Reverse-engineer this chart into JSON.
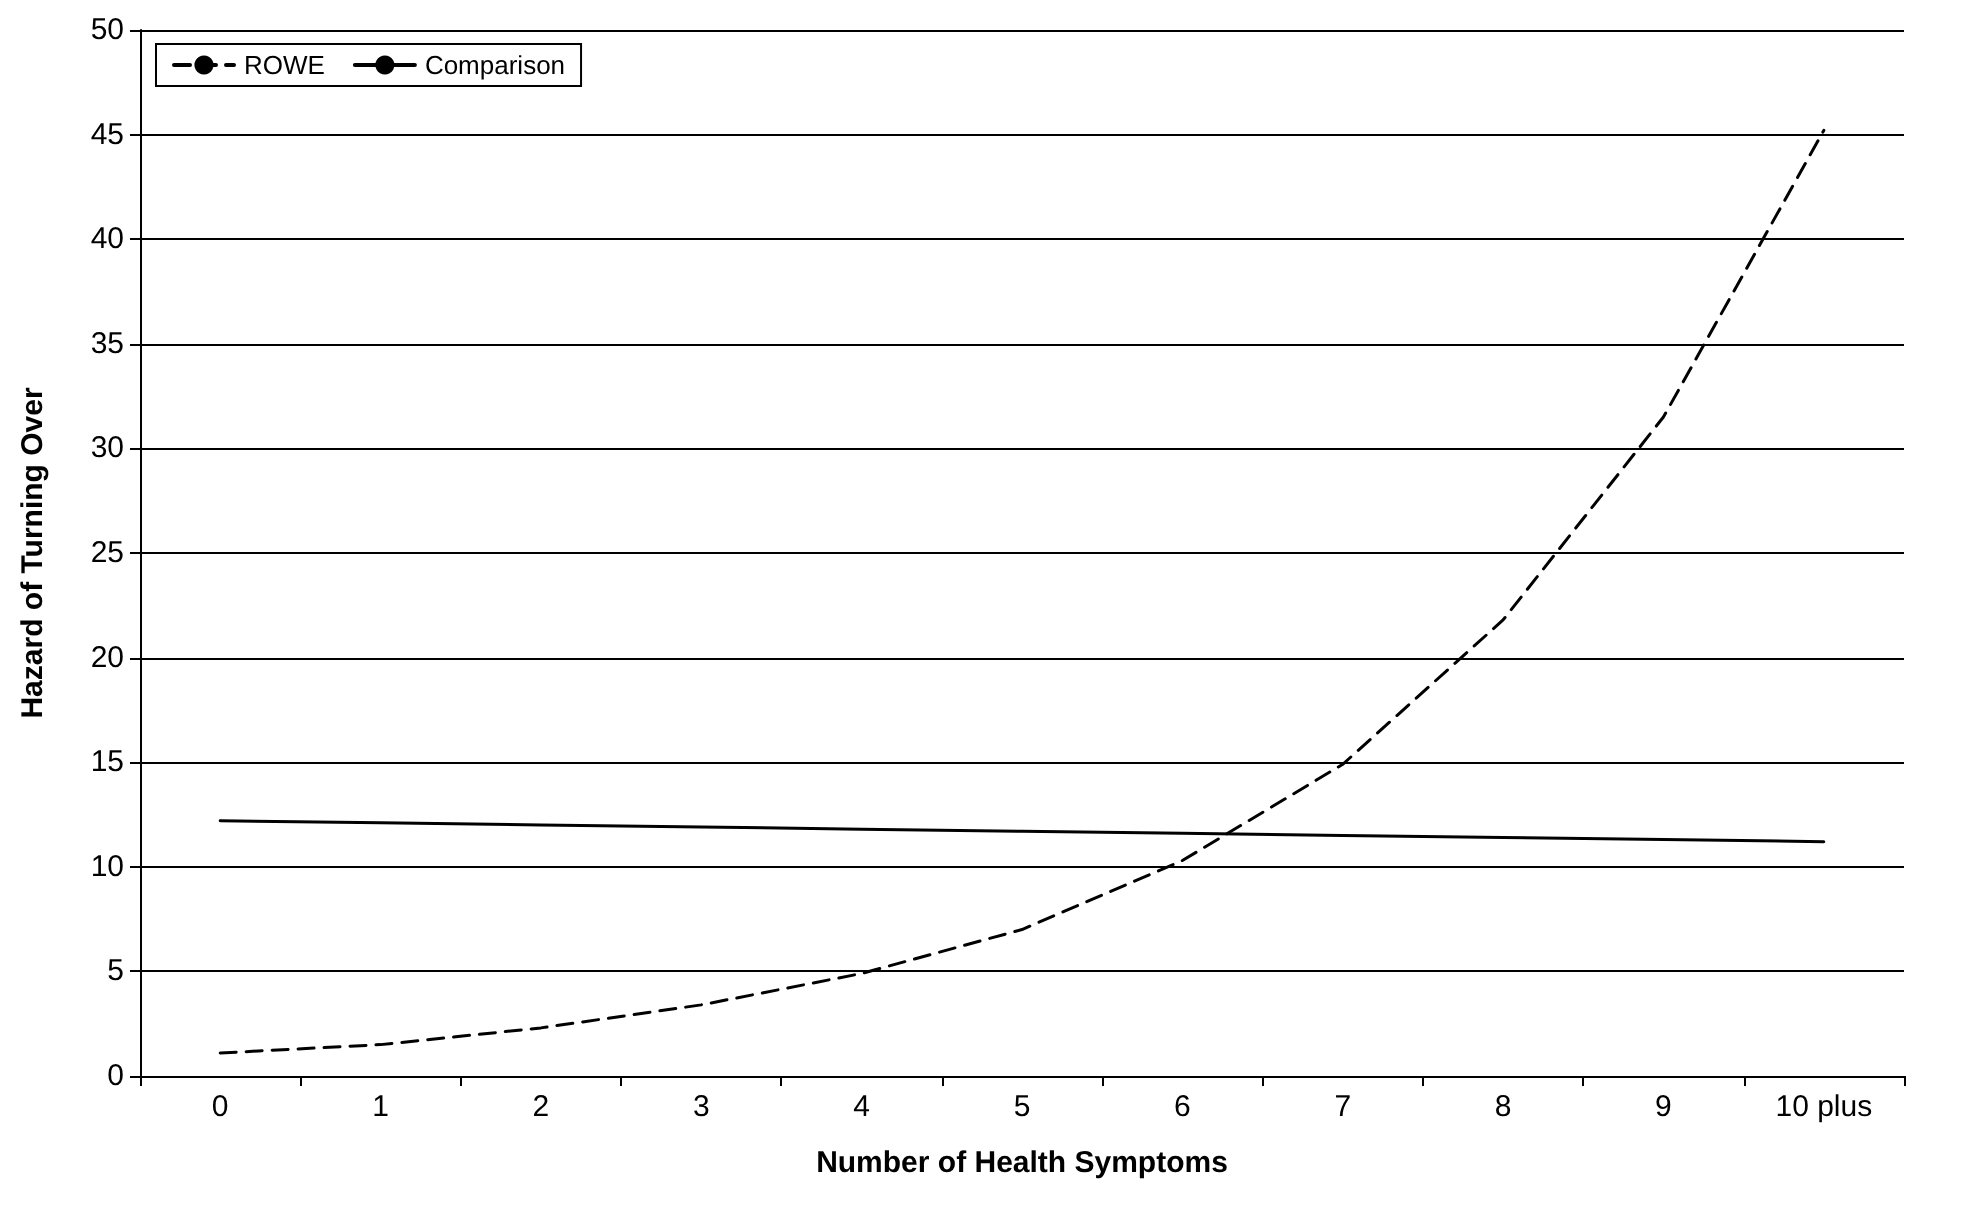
{
  "chart_data": {
    "type": "line",
    "xlabel": "Number of Health Symptoms",
    "ylabel": "Hazard of Turning Over",
    "categories": [
      "0",
      "1",
      "2",
      "3",
      "4",
      "5",
      "6",
      "7",
      "8",
      "9",
      "10 plus"
    ],
    "series": [
      {
        "name": "ROWE",
        "color": "#000000",
        "line_style": "dashed",
        "values": [
          1.1,
          1.5,
          2.3,
          3.4,
          4.9,
          7.0,
          10.3,
          14.9,
          21.8,
          31.5,
          45.2
        ]
      },
      {
        "name": "Comparison",
        "color": "#000000",
        "line_style": "solid",
        "values": [
          12.2,
          12.1,
          12.0,
          11.9,
          11.8,
          11.7,
          11.6,
          11.5,
          11.4,
          11.3,
          11.2
        ]
      }
    ],
    "ylim": [
      0,
      50
    ],
    "yticks": [
      0,
      5,
      10,
      15,
      20,
      25,
      30,
      35,
      40,
      45,
      50
    ],
    "grid": "y",
    "legend": "top left",
    "marker": "none"
  }
}
